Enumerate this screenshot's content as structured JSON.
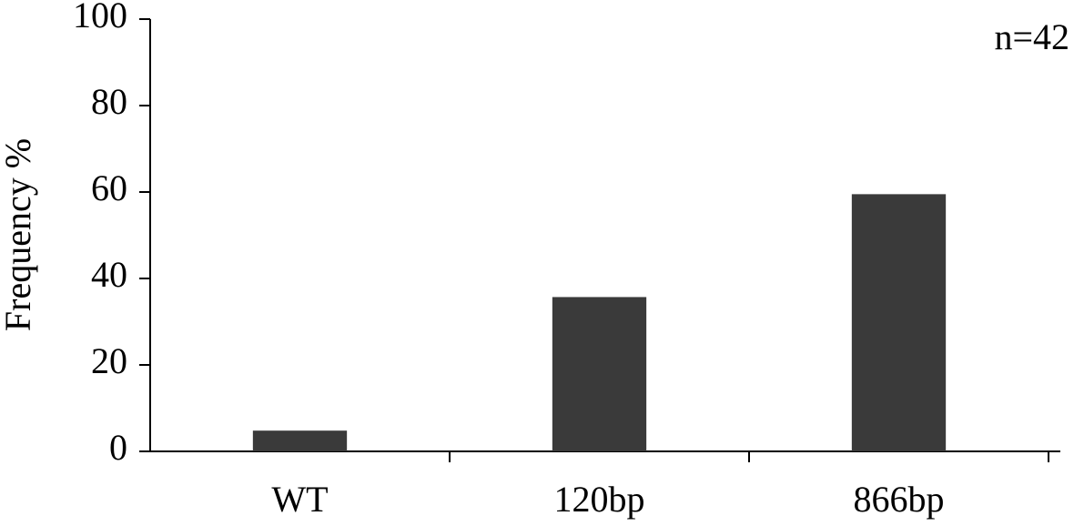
{
  "chart_data": {
    "type": "bar",
    "y_label": "Frequency %",
    "annotation": "n=42",
    "categories": [
      "WT",
      "120bp",
      "866bp"
    ],
    "values": [
      4.8,
      35.7,
      59.5
    ],
    "color": "#3a3a3a",
    "ylim": [
      0,
      100
    ],
    "yticks": [
      0,
      20,
      40,
      60,
      80,
      100
    ],
    "grid": false
  }
}
